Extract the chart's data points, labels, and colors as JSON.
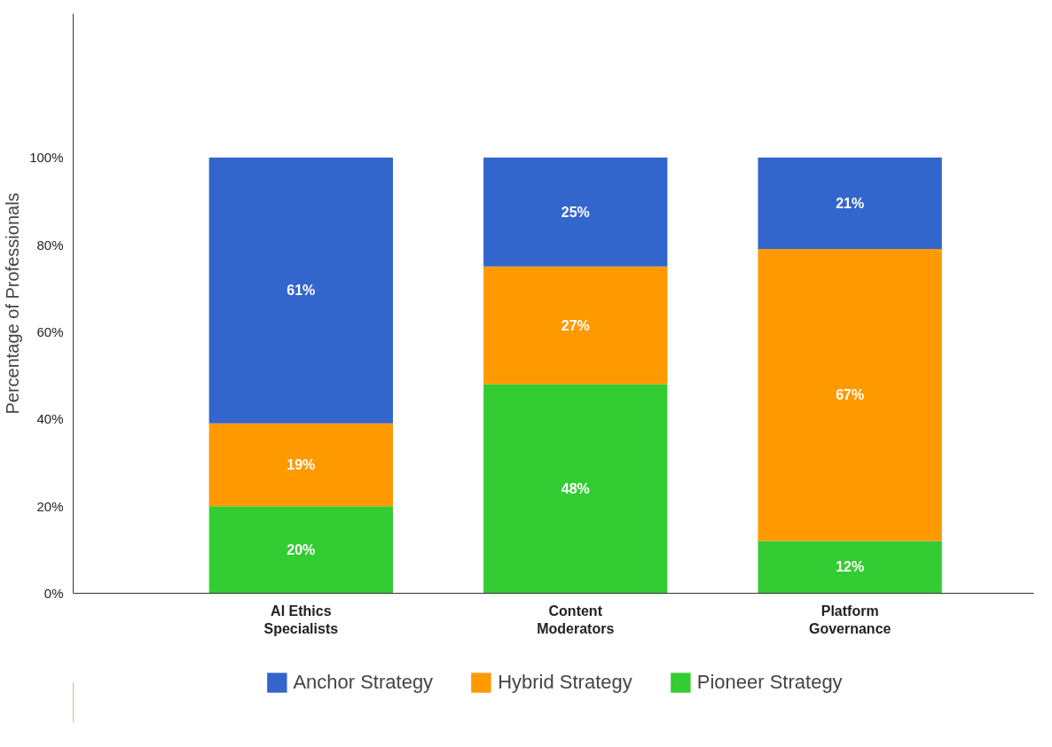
{
  "chart_data": {
    "type": "bar",
    "stacked": true,
    "ylabel": "Percentage of Professionals",
    "categories": [
      "AI Ethics\nSpecialists",
      "Content\nModerators",
      "Platform\nGovernance"
    ],
    "series": [
      {
        "name": "Pioneer Strategy",
        "color": "#33cc33",
        "values": [
          20,
          48,
          12
        ],
        "value_labels": [
          "20%",
          "48%",
          "12%"
        ]
      },
      {
        "name": "Hybrid Strategy",
        "color": "#ff9900",
        "values": [
          19,
          27,
          67
        ],
        "value_labels": [
          "19%",
          "27%",
          "67%"
        ]
      },
      {
        "name": "Anchor Strategy",
        "color": "#3366cc",
        "values": [
          61,
          25,
          21
        ],
        "value_labels": [
          "61%",
          "25%",
          "21%"
        ]
      }
    ],
    "ylim": [
      0,
      133
    ],
    "yticks": [
      {
        "value": 0,
        "label": "0%"
      },
      {
        "value": 20,
        "label": "20%"
      },
      {
        "value": 40,
        "label": "40%"
      },
      {
        "value": 60,
        "label": "60%"
      },
      {
        "value": 80,
        "label": "80%"
      },
      {
        "value": 100,
        "label": "100%"
      }
    ],
    "grid": false,
    "legend": "bottom"
  }
}
